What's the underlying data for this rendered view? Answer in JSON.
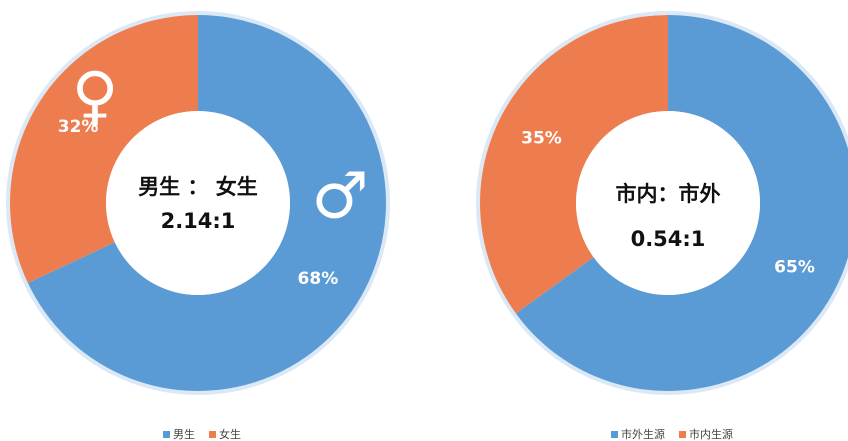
{
  "chart_data": [
    {
      "type": "pie",
      "donut": true,
      "categories": [
        "男生",
        "女生"
      ],
      "values": [
        68,
        32
      ],
      "value_labels": [
        "68%",
        "32%"
      ],
      "colors": [
        "#5b9bd5",
        "#ed7d4f"
      ],
      "center_text": [
        "男生 ： 女生",
        "2.14:1"
      ],
      "annotations": [
        "♂",
        "♀"
      ]
    },
    {
      "type": "pie",
      "donut": true,
      "categories": [
        "市外生源",
        "市内生源"
      ],
      "values": [
        65,
        35
      ],
      "value_labels": [
        "65%",
        "35%"
      ],
      "colors": [
        "#5b9bd5",
        "#ed7d4f"
      ],
      "center_text": [
        "市内：市外",
        "0.54:1"
      ]
    }
  ]
}
